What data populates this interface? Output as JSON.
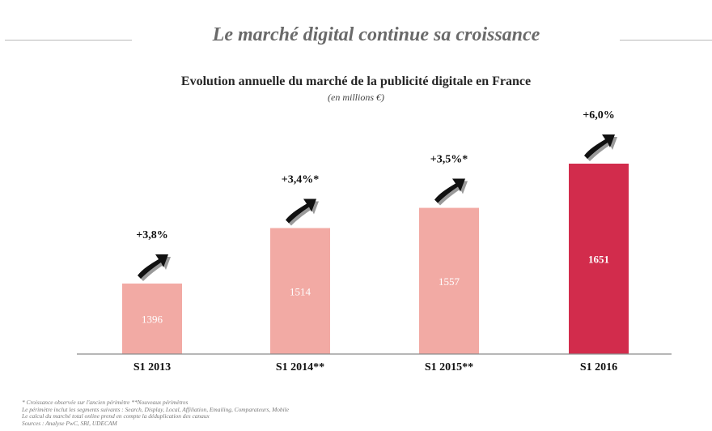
{
  "headline": "Le marché digital continue sa croissance",
  "chart_data": {
    "type": "bar",
    "title": "Evolution annuelle du marché de la publicité digitale en France",
    "subtitle": "(en millions €)",
    "categories": [
      "S1 2013",
      "S1 2014**",
      "S1 2015**",
      "S1 2016"
    ],
    "values": [
      1396,
      1514,
      1557,
      1651
    ],
    "growth_labels": [
      "+3,8%",
      "+3,4%*",
      "+3,5%*",
      "+6,0%"
    ],
    "bar_colors": [
      "#f2aaa4",
      "#f2aaa4",
      "#f2aaa4",
      "#d22c4c"
    ],
    "value_label_colors": [
      "#ffffff",
      "#ffffff",
      "#ffffff",
      "#ffffff"
    ]
  },
  "footnotes": [
    "* Croissance observée  sur l'ancien périmètre **Nouveaux périmètres",
    "Le périmètre inclut les segments suivants : Search, Display, Local, Affiliation, Emailing, Comparateurs, Mobile",
    "Le calcul du marché total online prend en compte la déduplication des canaux",
    "Sources : Analyse PwC, SRI, UDECAM"
  ]
}
